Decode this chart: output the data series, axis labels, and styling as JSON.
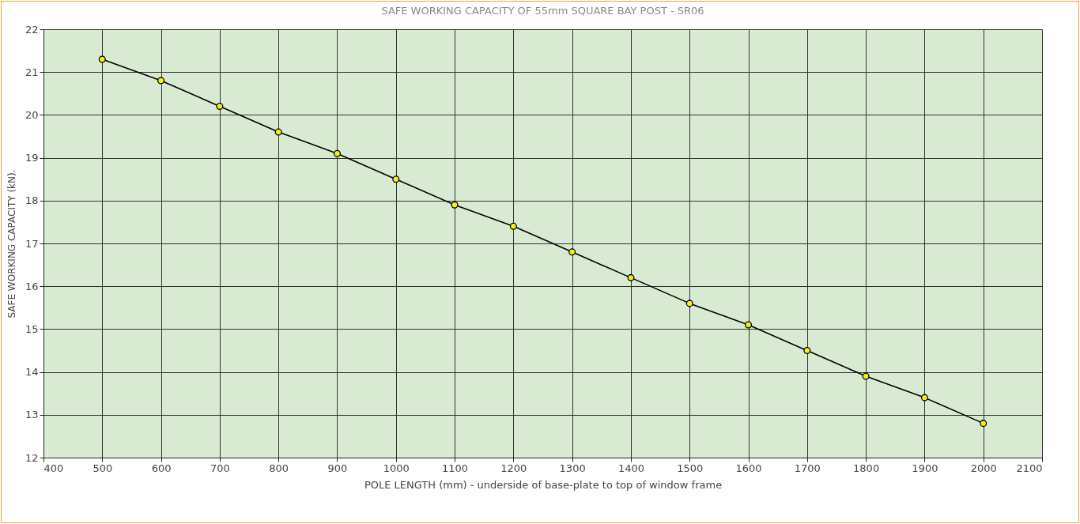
{
  "chart_data": {
    "type": "line",
    "title": "SAFE WORKING CAPACITY OF 55mm SQUARE BAY POST - SR06",
    "xlabel": "POLE LENGTH (mm) - underside of base-plate to top of window frame",
    "ylabel": "SAFE WORKING CAPACITY (kN).",
    "x": [
      500,
      600,
      700,
      800,
      900,
      1000,
      1100,
      1200,
      1300,
      1400,
      1500,
      1600,
      1700,
      1800,
      1900,
      2000
    ],
    "series": [
      {
        "color": "#000000",
        "values": [
          21.3,
          20.8,
          20.2,
          19.6,
          19.1,
          18.5,
          17.9,
          17.4,
          16.8,
          16.2,
          15.6,
          15.1,
          14.5,
          13.9,
          13.4,
          12.8
        ]
      }
    ],
    "xlim": [
      400,
      2100
    ],
    "xticks": [
      400,
      500,
      600,
      700,
      800,
      900,
      1000,
      1100,
      1200,
      1300,
      1400,
      1500,
      1600,
      1700,
      1800,
      1900,
      2000,
      2100
    ],
    "ylim": [
      12,
      22
    ],
    "yticks": [
      12,
      13,
      14,
      15,
      16,
      17,
      18,
      19,
      20,
      21,
      22
    ],
    "grid": true,
    "marker": "circle",
    "line_style": "solid"
  }
}
